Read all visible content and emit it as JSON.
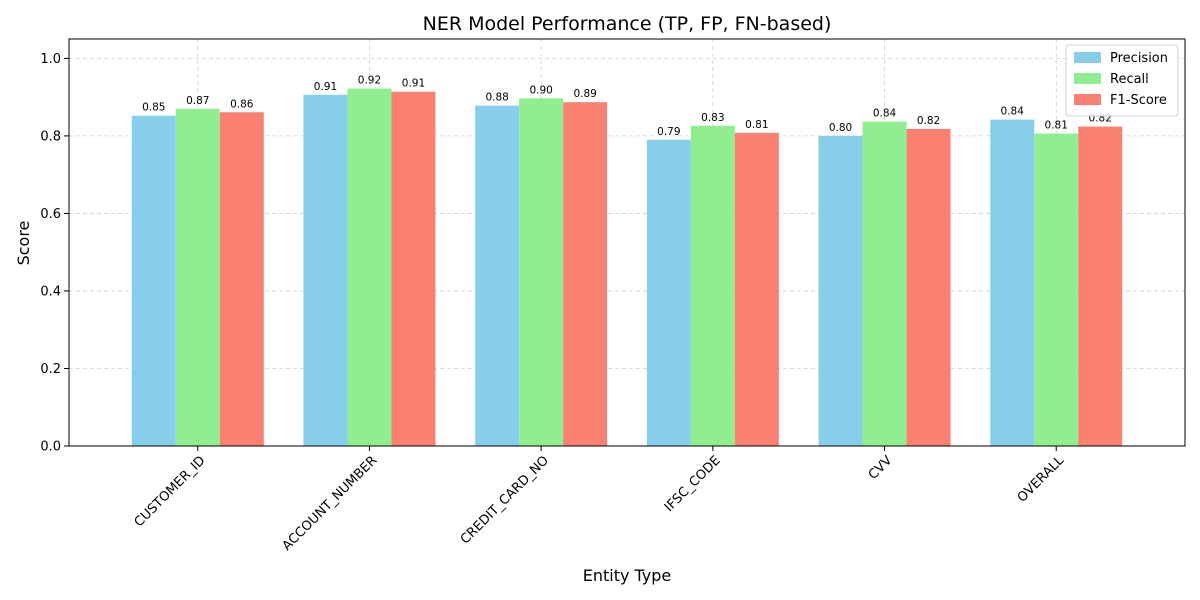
{
  "chart_data": {
    "type": "bar",
    "title": "NER Model Performance (TP, FP, FN-based)",
    "xlabel": "Entity Type",
    "ylabel": "Score",
    "categories": [
      "CUSTOMER_ID",
      "ACCOUNT_NUMBER",
      "CREDIT_CARD_NO",
      "IFSC_CODE",
      "CVV",
      "OVERALL"
    ],
    "series": [
      {
        "name": "Precision",
        "color": "#87ceeb",
        "values": [
          0.852,
          0.906,
          0.878,
          0.79,
          0.8,
          0.842
        ],
        "labels": [
          "0.85",
          "0.91",
          "0.88",
          "0.79",
          "0.80",
          "0.84"
        ]
      },
      {
        "name": "Recall",
        "color": "#90ee90",
        "values": [
          0.87,
          0.922,
          0.897,
          0.826,
          0.837,
          0.806
        ],
        "labels": [
          "0.87",
          "0.92",
          "0.90",
          "0.83",
          "0.84",
          "0.81"
        ]
      },
      {
        "name": "F1-Score",
        "color": "#fa8072",
        "values": [
          0.861,
          0.914,
          0.887,
          0.808,
          0.818,
          0.824
        ],
        "labels": [
          "0.86",
          "0.91",
          "0.89",
          "0.81",
          "0.82",
          "0.82"
        ]
      }
    ],
    "ylim": [
      0,
      1.05
    ],
    "yticks": [
      0.0,
      0.2,
      0.4,
      0.6,
      0.8,
      1.0
    ],
    "ytick_labels": [
      "0.0",
      "0.2",
      "0.4",
      "0.6",
      "0.8",
      "1.0"
    ],
    "grid": true,
    "legend_position": "top-right"
  }
}
